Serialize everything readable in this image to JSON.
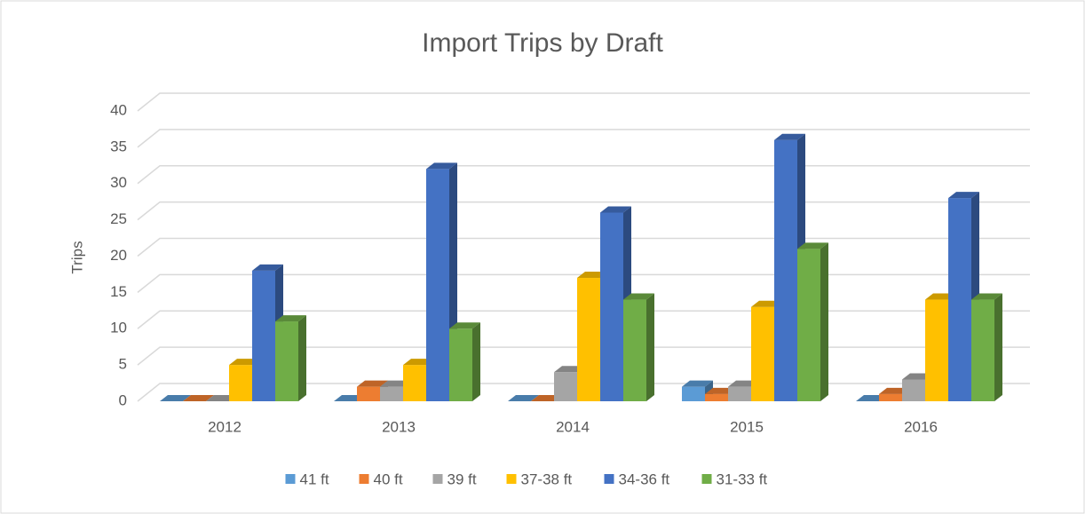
{
  "chart_data": {
    "type": "bar3d",
    "title": "Import Trips by Draft",
    "y_label": "Trips",
    "categories": [
      "2012",
      "2013",
      "2014",
      "2015",
      "2016"
    ],
    "series": [
      {
        "name": "41 ft",
        "color": "#5b9bd5",
        "values": [
          0,
          0,
          0,
          2,
          0
        ]
      },
      {
        "name": "40 ft",
        "color": "#ed7d31",
        "values": [
          0,
          2,
          0,
          1,
          1
        ]
      },
      {
        "name": "39 ft",
        "color": "#a5a5a5",
        "values": [
          0,
          2,
          4,
          2,
          3
        ]
      },
      {
        "name": "37-38 ft",
        "color": "#ffc000",
        "values": [
          5,
          5,
          17,
          13,
          14
        ]
      },
      {
        "name": "34-36 ft",
        "color": "#4472c4",
        "values": [
          18,
          32,
          26,
          36,
          28
        ]
      },
      {
        "name": "31-33 ft",
        "color": "#70ad47",
        "values": [
          11,
          10,
          14,
          21,
          14
        ]
      }
    ],
    "ylim": [
      0,
      40
    ],
    "yticks": [
      0,
      5,
      10,
      15,
      20,
      25,
      30,
      35,
      40
    ],
    "grid": true,
    "legend": "bottom"
  }
}
